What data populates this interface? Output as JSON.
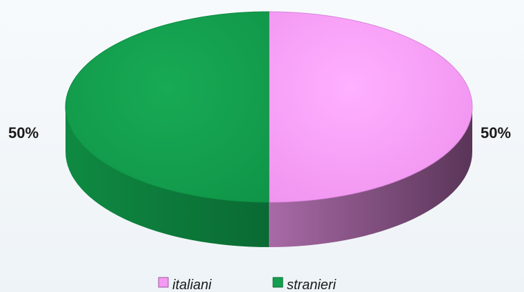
{
  "chart_data": {
    "type": "pie",
    "style": "3d",
    "title": "",
    "slices": [
      {
        "name": "italiani",
        "value": 50,
        "label": "50%",
        "color": "#f49af4",
        "side_color": "#7a4a78"
      },
      {
        "name": "stranieri",
        "value": 50,
        "label": "50%",
        "color": "#12a04e",
        "side_color": "#0d7a3a"
      }
    ],
    "legend": {
      "placement": "bottom",
      "entries": [
        {
          "name": "italiani",
          "color": "#f49af4"
        },
        {
          "name": "stranieri",
          "color": "#12a04e"
        }
      ]
    }
  }
}
